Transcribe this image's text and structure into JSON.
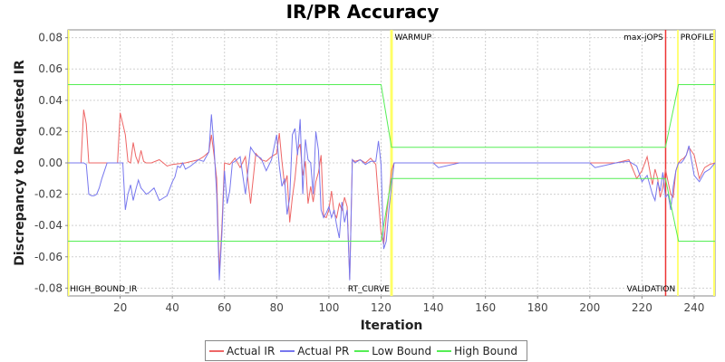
{
  "chart_data": {
    "type": "line",
    "title": "IR/PR Accuracy",
    "xlabel": "Iteration",
    "ylabel": "Discrepancy to Requested IR",
    "xlim": [
      0,
      248
    ],
    "ylim": [
      -0.085,
      0.085
    ],
    "x_ticks": [
      20,
      40,
      60,
      80,
      100,
      120,
      140,
      160,
      180,
      200,
      220,
      240
    ],
    "y_ticks": [
      -0.08,
      -0.06,
      -0.04,
      -0.02,
      0.0,
      0.02,
      0.04,
      0.06,
      0.08
    ],
    "y_tick_labels": [
      "-0.08",
      "-0.06",
      "-0.04",
      "-0.02",
      "0.00",
      "0.02",
      "0.04",
      "0.06",
      "0.08"
    ],
    "grid": true,
    "legend_position": "bottom",
    "series": [
      {
        "name": "Actual IR",
        "color": "#ee6666",
        "x": [
          0,
          5,
          6,
          7,
          8,
          10,
          12,
          15,
          19,
          20,
          21,
          22,
          23,
          24,
          25,
          26,
          27,
          28,
          29,
          30,
          32,
          35,
          38,
          40,
          45,
          50,
          52,
          54,
          55,
          56,
          57,
          58,
          59,
          60,
          62,
          64,
          66,
          68,
          70,
          72,
          74,
          76,
          78,
          80,
          81,
          82,
          83,
          84,
          85,
          86,
          87,
          88,
          89,
          90,
          91,
          92,
          93,
          94,
          95,
          96,
          97,
          98,
          99,
          100,
          101,
          102,
          103,
          104,
          105,
          106,
          107,
          108,
          109,
          110,
          112,
          114,
          116,
          118,
          120,
          121,
          122,
          123,
          124,
          125,
          130,
          140,
          150,
          160,
          170,
          180,
          190,
          200,
          210,
          215,
          218,
          220,
          222,
          224,
          225,
          226,
          227,
          228,
          229,
          230,
          231,
          232,
          233,
          234,
          235,
          236,
          237,
          238,
          240,
          242,
          244,
          246,
          248
        ],
        "y": [
          0,
          0,
          0.034,
          0.025,
          0,
          0,
          0,
          0,
          0,
          0.032,
          0.025,
          0.018,
          0.001,
          0,
          0.013,
          0.004,
          0,
          0.008,
          0.001,
          0,
          0,
          0.002,
          -0.002,
          -0.001,
          0,
          0.002,
          0.004,
          0.007,
          0.018,
          0.005,
          -0.01,
          -0.07,
          -0.04,
          0,
          -0.001,
          0.003,
          -0.003,
          0.004,
          -0.026,
          0.006,
          0.002,
          0.001,
          0.004,
          0.006,
          0.019,
          0.001,
          -0.014,
          -0.008,
          -0.038,
          -0.022,
          -0.01,
          0.008,
          0.012,
          -0.008,
          0.001,
          -0.026,
          -0.015,
          -0.025,
          -0.012,
          -0.006,
          0.005,
          -0.034,
          -0.035,
          -0.03,
          -0.018,
          -0.032,
          -0.035,
          -0.026,
          -0.03,
          -0.022,
          -0.028,
          -0.074,
          0.002,
          0.001,
          0.002,
          0,
          0.003,
          -0.001,
          -0.045,
          -0.052,
          -0.035,
          -0.02,
          -0.005,
          0,
          0,
          0,
          0,
          0,
          0,
          0,
          0,
          0,
          0,
          0.002,
          -0.01,
          -0.005,
          0.004,
          -0.014,
          -0.004,
          -0.01,
          -0.022,
          -0.016,
          -0.004,
          -0.012,
          -0.02,
          -0.022,
          -0.005,
          0,
          0.002,
          0.003,
          0.005,
          0.01,
          0.005,
          -0.01,
          -0.003,
          -0.001,
          0
        ]
      },
      {
        "name": "Actual PR",
        "color": "#7777ee",
        "x": [
          0,
          6,
          7,
          8,
          9,
          10,
          11,
          12,
          13,
          15,
          17,
          19,
          20,
          21,
          22,
          23,
          24,
          25,
          26,
          27,
          28,
          29,
          30,
          31,
          33,
          35,
          37,
          38,
          40,
          41,
          42,
          43,
          44,
          45,
          47,
          50,
          52,
          54,
          55,
          56,
          57,
          58,
          59,
          60,
          61,
          62,
          63,
          64,
          66,
          68,
          70,
          72,
          74,
          76,
          78,
          80,
          81,
          82,
          83,
          84,
          85,
          86,
          87,
          88,
          89,
          90,
          91,
          92,
          93,
          94,
          95,
          96,
          97,
          98,
          99,
          100,
          101,
          102,
          103,
          104,
          105,
          106,
          107,
          108,
          109,
          110,
          112,
          114,
          116,
          118,
          119,
          120,
          121,
          122,
          123,
          124,
          125,
          130,
          140,
          142,
          150,
          160,
          170,
          180,
          190,
          200,
          202,
          210,
          215,
          218,
          220,
          222,
          224,
          225,
          226,
          227,
          228,
          229,
          230,
          231,
          232,
          233,
          234,
          235,
          236,
          237,
          238,
          240,
          242,
          244,
          246,
          248
        ],
        "y": [
          0,
          0,
          -0.001,
          -0.02,
          -0.021,
          -0.021,
          -0.02,
          -0.016,
          -0.01,
          0,
          0,
          0,
          0,
          0,
          -0.03,
          -0.02,
          -0.014,
          -0.024,
          -0.017,
          -0.011,
          -0.016,
          -0.018,
          -0.02,
          -0.019,
          -0.016,
          -0.024,
          -0.022,
          -0.021,
          -0.012,
          -0.009,
          -0.002,
          -0.003,
          0,
          -0.004,
          -0.002,
          0.002,
          0.001,
          0.007,
          0.031,
          0.01,
          -0.02,
          -0.075,
          -0.045,
          -0.005,
          -0.026,
          -0.018,
          0,
          0.001,
          0.004,
          -0.02,
          0.01,
          0.005,
          0.003,
          -0.005,
          0.002,
          0.018,
          -0.002,
          -0.015,
          -0.01,
          -0.033,
          -0.022,
          0.018,
          0.022,
          0.005,
          0.028,
          -0.02,
          0.015,
          0.002,
          0,
          -0.02,
          0.02,
          0.008,
          -0.03,
          -0.035,
          -0.032,
          -0.028,
          -0.035,
          -0.03,
          -0.04,
          -0.048,
          -0.025,
          -0.038,
          -0.03,
          -0.075,
          0.002,
          0,
          0.002,
          -0.001,
          0.001,
          0.001,
          0.014,
          -0.001,
          -0.055,
          -0.05,
          -0.03,
          -0.015,
          0,
          0,
          0,
          -0.003,
          0,
          0,
          0,
          0,
          0,
          0,
          -0.003,
          0,
          0.001,
          -0.002,
          -0.012,
          -0.008,
          -0.02,
          -0.024,
          -0.012,
          -0.018,
          -0.006,
          -0.022,
          -0.02,
          -0.03,
          -0.015,
          -0.005,
          0,
          0,
          0.002,
          0.005,
          0.011,
          -0.008,
          -0.012,
          -0.006,
          -0.004,
          0
        ]
      },
      {
        "name": "Low Bound",
        "color": "#55ee55",
        "x": [
          0,
          120,
          124,
          229,
          234,
          248
        ],
        "y": [
          -0.05,
          -0.05,
          -0.01,
          -0.01,
          -0.05,
          -0.05
        ]
      },
      {
        "name": "High Bound",
        "color": "#55ee55",
        "x": [
          0,
          120,
          124,
          229,
          234,
          248
        ],
        "y": [
          0.05,
          0.05,
          0.01,
          0.01,
          0.05,
          0.05
        ]
      }
    ],
    "markers": [
      {
        "label": "WARMUP",
        "x_start": 123.5,
        "x_end": 124.5,
        "color": "#ffff66",
        "label_pos": "top"
      },
      {
        "label": "max-jOPS",
        "x_start": 228.8,
        "x_end": 229.2,
        "color": "#ee3333",
        "label_pos": "top-left"
      },
      {
        "label": "PROFILE",
        "x_start": 233.5,
        "x_end": 234,
        "color": "#ffff66",
        "label_pos": "top"
      },
      {
        "label": "HIGH_BOUND_IR",
        "x_start": 0,
        "x_end": 0,
        "color": "#ffff66",
        "label_pos": "bottom"
      },
      {
        "label": "RT_CURVE",
        "x_start": 124,
        "x_end": 124,
        "color": "#ffff66",
        "label_pos": "bottom-left"
      },
      {
        "label": "VALIDATION",
        "x_start": 233.5,
        "x_end": 233.5,
        "color": "#ffff66",
        "label_pos": "bottom-left"
      },
      {
        "label": "",
        "x_start": 247.3,
        "x_end": 248,
        "color": "#ffff66",
        "label_pos": "none"
      }
    ]
  }
}
